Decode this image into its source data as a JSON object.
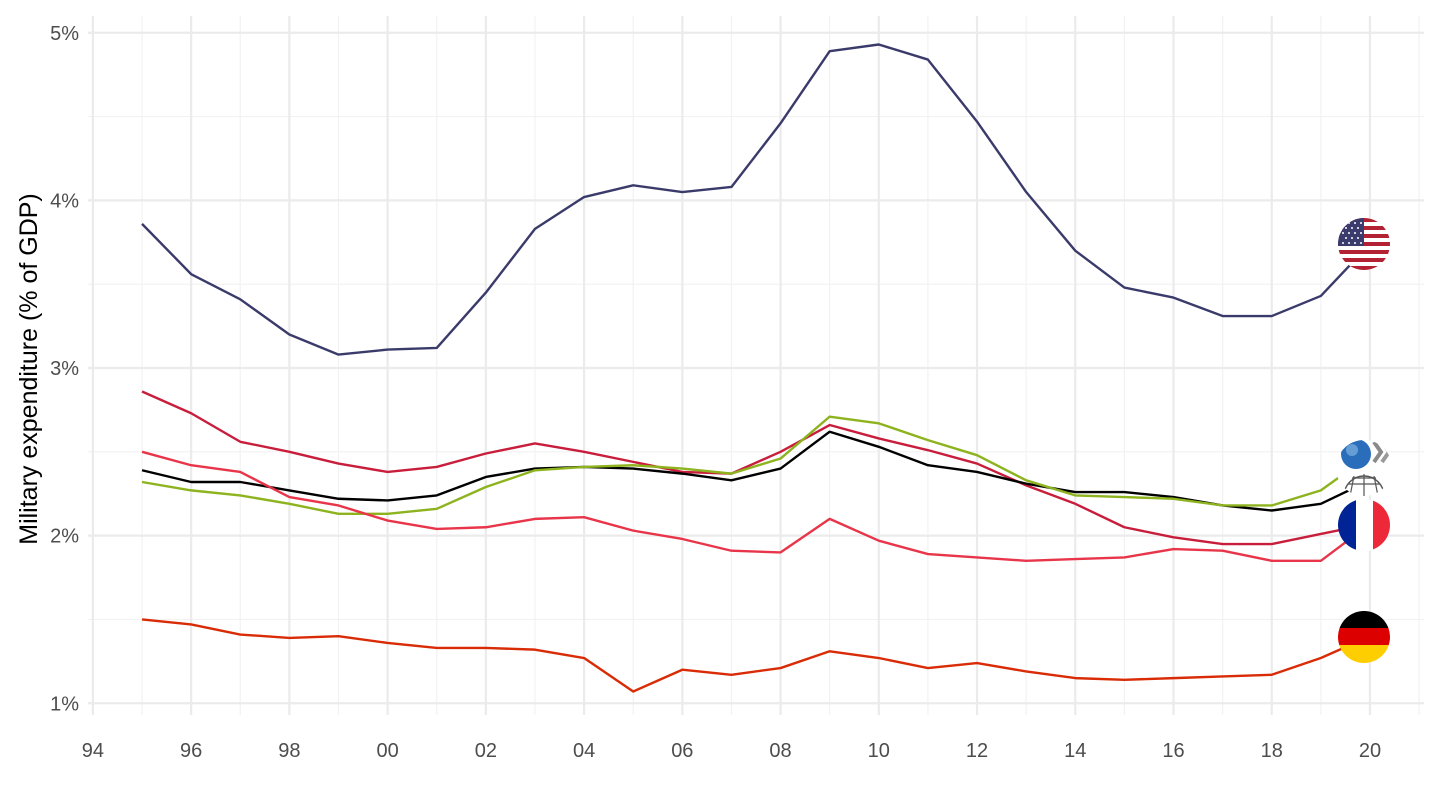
{
  "chart_data": {
    "type": "line",
    "title": "",
    "xlabel": "",
    "ylabel": "Military expenditure (% of GDP)",
    "xlim": [
      1993.9,
      2021.1
    ],
    "ylim": [
      0.93,
      5.1
    ],
    "x_ticks": [
      {
        "value": 1994,
        "label": "94"
      },
      {
        "value": 1996,
        "label": "96"
      },
      {
        "value": 1998,
        "label": "98"
      },
      {
        "value": 2000,
        "label": "00"
      },
      {
        "value": 2002,
        "label": "02"
      },
      {
        "value": 2004,
        "label": "04"
      },
      {
        "value": 2006,
        "label": "06"
      },
      {
        "value": 2008,
        "label": "08"
      },
      {
        "value": 2010,
        "label": "10"
      },
      {
        "value": 2012,
        "label": "12"
      },
      {
        "value": 2014,
        "label": "14"
      },
      {
        "value": 2016,
        "label": "16"
      },
      {
        "value": 2018,
        "label": "18"
      },
      {
        "value": 2020,
        "label": "20"
      }
    ],
    "y_ticks": [
      {
        "value": 1,
        "label": "1%"
      },
      {
        "value": 2,
        "label": "2%"
      },
      {
        "value": 3,
        "label": "3%"
      },
      {
        "value": 4,
        "label": "4%"
      },
      {
        "value": 5,
        "label": "5%"
      }
    ],
    "grid": true,
    "legend": "none; series end in circular flag/logo icons",
    "x": [
      1995,
      1996,
      1997,
      1998,
      1999,
      2000,
      2001,
      2002,
      2003,
      2004,
      2005,
      2006,
      2007,
      2008,
      2009,
      2010,
      2011,
      2012,
      2013,
      2014,
      2015,
      2016,
      2017,
      2018,
      2019,
      2020
    ],
    "series": [
      {
        "color": "#3b3b6b",
        "end_icon": "united-states-flag-icon",
        "values": [
          3.86,
          3.56,
          3.41,
          3.2,
          3.08,
          3.11,
          3.12,
          3.45,
          3.83,
          4.02,
          4.09,
          4.05,
          4.08,
          4.46,
          4.89,
          4.93,
          4.84,
          4.47,
          4.05,
          3.7,
          3.48,
          3.42,
          3.31,
          3.31,
          3.43,
          3.74
        ]
      },
      {
        "color": "#c81e3c",
        "end_icon": "france-flag-icon",
        "values": [
          2.86,
          2.73,
          2.56,
          2.5,
          2.43,
          2.38,
          2.41,
          2.49,
          2.55,
          2.5,
          2.44,
          2.38,
          2.37,
          2.5,
          2.66,
          2.58,
          2.51,
          2.43,
          2.3,
          2.19,
          2.05,
          1.99,
          1.95,
          1.95,
          2.01,
          2.07
        ]
      },
      {
        "color": "#000000",
        "end_icon": "oecd-logo-icon",
        "values": [
          2.39,
          2.32,
          2.32,
          2.27,
          2.22,
          2.21,
          2.24,
          2.35,
          2.4,
          2.41,
          2.4,
          2.37,
          2.33,
          2.4,
          2.62,
          2.53,
          2.42,
          2.38,
          2.31,
          2.26,
          2.26,
          2.23,
          2.18,
          2.15,
          2.19,
          2.33
        ]
      },
      {
        "color": "#8db31e",
        "end_icon": "oecd-logo-icon",
        "values": [
          2.32,
          2.27,
          2.24,
          2.19,
          2.13,
          2.13,
          2.16,
          2.29,
          2.39,
          2.41,
          2.42,
          2.4,
          2.37,
          2.46,
          2.71,
          2.67,
          2.57,
          2.48,
          2.33,
          2.24,
          2.23,
          2.22,
          2.18,
          2.18,
          2.27,
          2.48
        ]
      },
      {
        "color": "#e8354a",
        "end_icon": "france-flag-icon",
        "values": [
          2.5,
          2.42,
          2.38,
          2.23,
          2.18,
          2.09,
          2.04,
          2.05,
          2.1,
          2.11,
          2.03,
          1.98,
          1.91,
          1.9,
          2.1,
          1.97,
          1.89,
          1.87,
          1.85,
          1.86,
          1.87,
          1.92,
          1.91,
          1.85,
          1.85,
          2.07
        ]
      },
      {
        "color": "#d92b06",
        "end_icon": "germany-flag-icon",
        "values": [
          1.5,
          1.47,
          1.41,
          1.39,
          1.4,
          1.36,
          1.33,
          1.33,
          1.32,
          1.27,
          1.07,
          1.2,
          1.17,
          1.21,
          1.31,
          1.27,
          1.21,
          1.24,
          1.19,
          1.15,
          1.14,
          1.15,
          1.16,
          1.17,
          1.27,
          1.4
        ]
      }
    ],
    "flags": [
      {
        "name": "united-states-flag-icon",
        "x": 2020,
        "y": 3.74,
        "stripe_red": "#b22234",
        "canton_blue": "#3c3b6e"
      },
      {
        "name": "germany-flag-icon",
        "x": 2020,
        "y": 1.4,
        "colors": [
          "#000000",
          "#dd0000",
          "#ffce00"
        ]
      },
      {
        "name": "france-flag-icon",
        "x": 2020,
        "y": 2.07,
        "colors": [
          "#002395",
          "#ffffff",
          "#ed2939"
        ]
      },
      {
        "name": "oecd-logo-icon",
        "x": 2020,
        "y": 2.41,
        "globe_blue": "#2a6ebb",
        "chevron_gray": "#8a8a8a"
      }
    ]
  }
}
